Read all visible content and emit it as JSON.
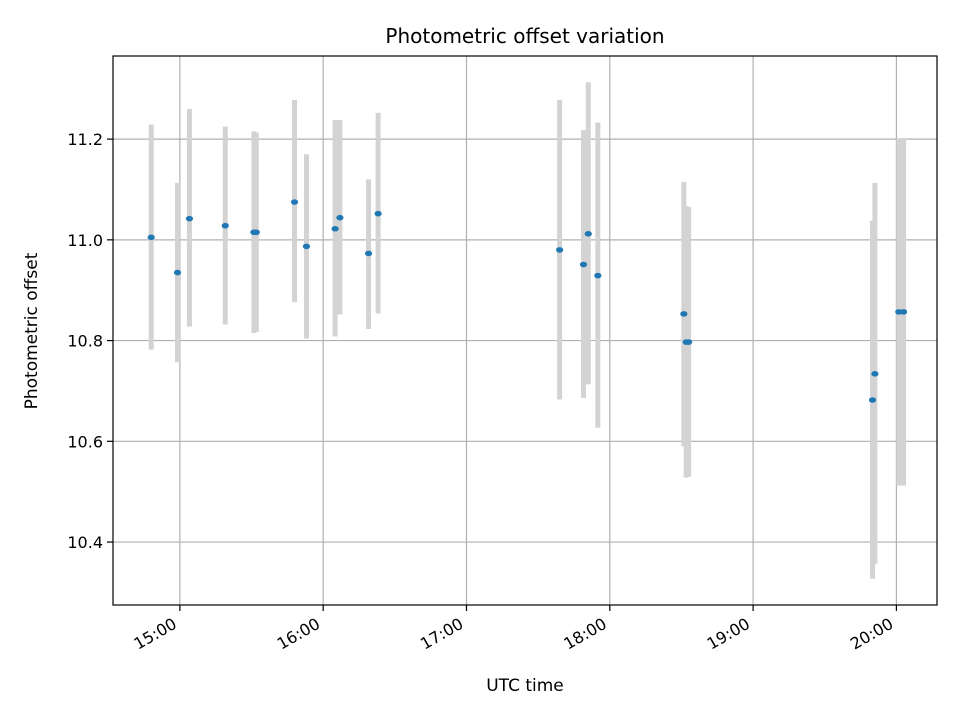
{
  "chart_data": {
    "type": "scatter",
    "title": "Photometric offset variation",
    "xlabel": "UTC time",
    "ylabel": "Photometric offset",
    "xlim": [
      "14:32",
      "20:17"
    ],
    "ylim": [
      10.275,
      11.365
    ],
    "x_ticks": [
      "15:00",
      "16:00",
      "17:00",
      "18:00",
      "19:00",
      "20:00"
    ],
    "y_ticks": [
      "10.4",
      "10.6",
      "10.8",
      "11.0",
      "11.2"
    ],
    "grid": true,
    "marker_color": "#1f77b4",
    "errorbar_color": "#d3d3d3",
    "points": [
      {
        "x": "14:48",
        "y": 11.005,
        "ylow": 10.782,
        "yhigh": 11.229
      },
      {
        "x": "14:59",
        "y": 10.935,
        "ylow": 10.757,
        "yhigh": 11.113
      },
      {
        "x": "15:04",
        "y": 11.042,
        "ylow": 10.828,
        "yhigh": 11.26
      },
      {
        "x": "15:19",
        "y": 11.028,
        "ylow": 10.832,
        "yhigh": 11.225
      },
      {
        "x": "15:31",
        "y": 11.015,
        "ylow": 10.815,
        "yhigh": 11.215
      },
      {
        "x": "15:32",
        "y": 11.015,
        "ylow": 10.817,
        "yhigh": 11.213
      },
      {
        "x": "15:48",
        "y": 11.075,
        "ylow": 10.876,
        "yhigh": 11.278
      },
      {
        "x": "15:53",
        "y": 10.987,
        "ylow": 10.804,
        "yhigh": 11.17
      },
      {
        "x": "16:05",
        "y": 11.022,
        "ylow": 10.808,
        "yhigh": 11.238
      },
      {
        "x": "16:07",
        "y": 11.044,
        "ylow": 10.852,
        "yhigh": 11.238
      },
      {
        "x": "16:19",
        "y": 10.973,
        "ylow": 10.823,
        "yhigh": 11.12
      },
      {
        "x": "16:23",
        "y": 11.052,
        "ylow": 10.854,
        "yhigh": 11.252
      },
      {
        "x": "17:39",
        "y": 10.98,
        "ylow": 10.683,
        "yhigh": 11.278
      },
      {
        "x": "17:49",
        "y": 10.951,
        "ylow": 10.686,
        "yhigh": 11.218
      },
      {
        "x": "17:51",
        "y": 11.012,
        "ylow": 10.713,
        "yhigh": 11.313
      },
      {
        "x": "17:55",
        "y": 10.929,
        "ylow": 10.627,
        "yhigh": 11.233
      },
      {
        "x": "18:31",
        "y": 10.853,
        "ylow": 10.59,
        "yhigh": 11.115
      },
      {
        "x": "18:32",
        "y": 10.797,
        "ylow": 10.528,
        "yhigh": 11.067
      },
      {
        "x": "18:33",
        "y": 10.797,
        "ylow": 10.53,
        "yhigh": 11.065
      },
      {
        "x": "19:50",
        "y": 10.682,
        "ylow": 10.327,
        "yhigh": 11.038
      },
      {
        "x": "19:51",
        "y": 10.734,
        "ylow": 10.357,
        "yhigh": 11.113
      },
      {
        "x": "20:01",
        "y": 10.857,
        "ylow": 10.512,
        "yhigh": 11.202
      },
      {
        "x": "20:03",
        "y": 10.857,
        "ylow": 10.512,
        "yhigh": 11.202
      }
    ]
  }
}
